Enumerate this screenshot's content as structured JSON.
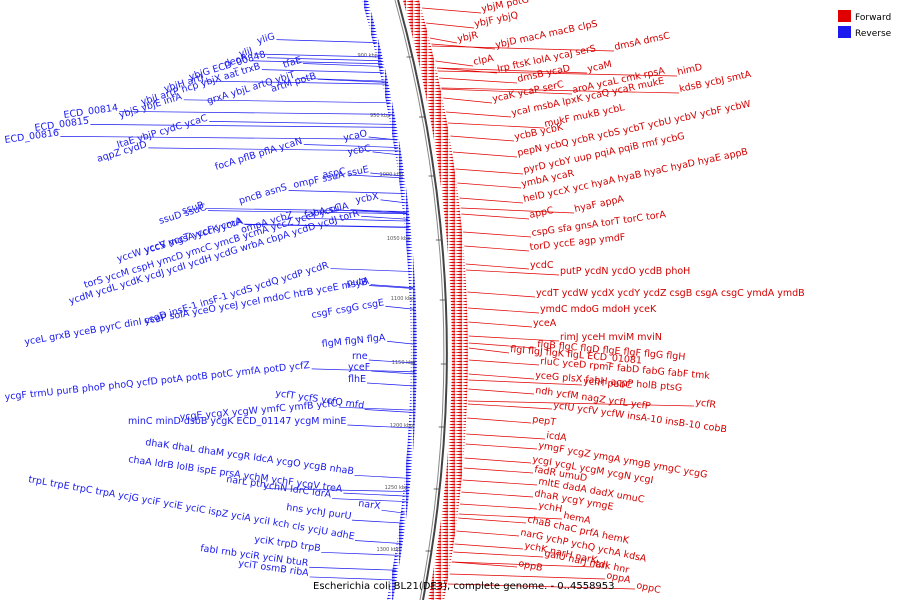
{
  "caption": "Escherichia coli BL21(DE3), complete genome. - 0..4558953",
  "legend": [
    {
      "label": "Forward",
      "color": "#e00000"
    },
    {
      "label": "Reverse",
      "color": "#1a1aee"
    }
  ],
  "ticks": [
    "900 kbp",
    "950 kbp",
    "1000 kbp",
    "1050 kbp",
    "1100 kbp",
    "1150 kbp",
    "1200 kbp",
    "1250 kbp",
    "1300 kbp"
  ],
  "forward_labels": [
    [
      "ybjM potG"
    ],
    [
      "ybjF ybjQ"
    ],
    [
      "ybjR"
    ],
    [
      "ybjD macA macB clpS"
    ],
    [
      "dmsA dmsC"
    ],
    [
      "clpA"
    ],
    [
      "lrp ftsK lolA ycaJ serS"
    ],
    [
      "himD"
    ],
    [
      "dmsB ycaD"
    ],
    [
      "ycaM"
    ],
    [
      "aroA ycaL cmk rpsA"
    ],
    [
      "ycaK ycaP serC"
    ],
    [
      "kdsB ycbJ smtA"
    ],
    [
      "ycaI msbA lpxK ycaQ ycaR mukE"
    ],
    [
      "mukF mukB ycbL"
    ],
    [
      "ycbB ycbK"
    ],
    [
      "pepN ycbQ ycbR ycbS ycbT ycbU ycbV ycbF ycbW"
    ],
    [
      "pyrD ycbY uup pqiA pqiB rmf ycbG"
    ],
    [
      "ymbA ycaR"
    ],
    [
      "helD yccX ycc hyaA hyaB hyaC hyaD hyaE appB"
    ],
    [
      "hyaF appA"
    ],
    [
      "appC"
    ],
    [
      "cspG sfa gnsA torT torC torA"
    ],
    [
      "torD yccE agp ymdF"
    ],
    [
      "ycdC"
    ],
    [
      "putP ycdN ycdO ycdB phoH"
    ],
    [
      "ycdT ycdW ycdX ycdY ycdZ csgB csgA csgC ymdA ymdB"
    ],
    [
      "ymdC mdoG mdoH yceK"
    ],
    [
      "yceA"
    ],
    [
      "rimJ yceH mviM mviN"
    ],
    [
      "flgB flgC flgD flgE flgF flgG flgH"
    ],
    [
      "flgI flgJ flgK flgL ECD_01081"
    ],
    [
      "rluC yceD rpmF fabD fabG fabF tmk"
    ],
    [
      "yceG plsX fabH acpP holB ptsG"
    ],
    [
      "ycfH pabC"
    ],
    [
      "ndh ycfM nagZ ycfL ycfP"
    ],
    [
      "ycfR"
    ],
    [
      "ycfU ycfV ycfW insA-10 insB-10 cobB"
    ],
    [
      "pepT"
    ],
    [
      "icdA"
    ],
    [
      "ymgF ycgZ ymgA ymgB ymgC ycgG"
    ],
    [
      "ycgI ycgL ycgM ycgN ycgI"
    ],
    [
      "fadR umuD"
    ],
    [
      "mltE dadA dadX umuC"
    ],
    [
      "dhaR ycgY ymgE"
    ],
    [
      "ychH"
    ],
    [
      "hemA"
    ],
    [
      "chaB chaC prfA hemK"
    ],
    [
      "narG ychP ychQ ychA kdsA"
    ],
    [
      "ychK narH narK"
    ],
    [
      "galU narJ narI"
    ],
    [
      "tdk hnr"
    ],
    [
      "oppB"
    ],
    [
      "oppA"
    ],
    [
      "oppC"
    ]
  ],
  "reverse_labels": [
    [
      "yliG"
    ],
    [
      "yliJ"
    ],
    [
      "deoR"
    ],
    [
      "tfaE"
    ],
    [
      "ybjG ECD_00848"
    ],
    [
      "ybjH artJ"
    ],
    [
      "artM potB"
    ],
    [
      "grxA ybjL artQ ybjT"
    ],
    [
      "ybjI artP hcp ybjX aat trxB"
    ],
    [
      "ECD_00814"
    ],
    [
      "ybjS ybjE infA"
    ],
    [
      "ECD_00815"
    ],
    [
      "ECD_00816"
    ],
    [
      "ltaE ybjP cydC ycaC"
    ],
    [
      "aqpZ cydD"
    ],
    [
      "ycaO"
    ],
    [
      "focA pflB pflA ycaN"
    ],
    [
      "ycbC"
    ],
    [
      "aspC"
    ],
    [
      "ompF ssuA ssuE"
    ],
    [
      "pncB asnS"
    ],
    [
      "ssuB"
    ],
    [
      "ssuD ssuC"
    ],
    [
      "ycbX"
    ],
    [
      "fabA sulA"
    ],
    [
      "ompA ycbZ"
    ],
    [
      "yccW yccS mgsA yccK yccA"
    ],
    [
      "yccV yccT yccF ycmA"
    ],
    [
      "torS yccM cspH ymcD ymcC ymcB ycmA yccZ yccY yccC"
    ],
    [
      "ycdM ycdL ycdK ycdJ ycdI ycdH ycdG wrbA cbpA ycdD ycdJ torR"
    ],
    [
      "putA"
    ],
    [
      "csgD insE-1 insF-1 ycdS ycdQ ycdP ycdR"
    ],
    [
      "csgF csgG csgE"
    ],
    [
      "yceL grxB yceB pyrC dinI yceP solA yceO yceJ yceI mdoC htrB yceE msyB"
    ],
    [
      "flgM flgN flgA"
    ],
    [
      "rne"
    ],
    [
      "yceF"
    ],
    [
      "flhE"
    ],
    [
      "ycfT ycfS ycfQ mfd"
    ],
    [
      "ycgF trmU purB phoP phoQ ycfD potA potB potC ymfA potD ycfZ"
    ],
    [
      "ycgE ycgX ycgW ymfC ymfB ycfC"
    ],
    [
      "minC minD dsbB ycgK ECD_01147 ycgM minE"
    ],
    [
      "dhaK dhaL dhaM ycgR ldcA ycgO ycgB nhaB"
    ],
    [
      "chaA ldrB lolB ispE prsA ychM ychF ycgV treA"
    ],
    [
      "narL pth"
    ],
    [
      "ychN ldrC ldrA"
    ],
    [
      "narX"
    ],
    [
      "trpL trpE trpC trpA ycjG yciF yciE yciC ispZ yciA yciI kch cls ycjU adhE"
    ],
    [
      "hns ychJ purU"
    ],
    [
      "yciK trpD trpB"
    ],
    [
      "fabI rnb yciR yciN btuR"
    ],
    [
      "yciT osmB ribA"
    ]
  ]
}
